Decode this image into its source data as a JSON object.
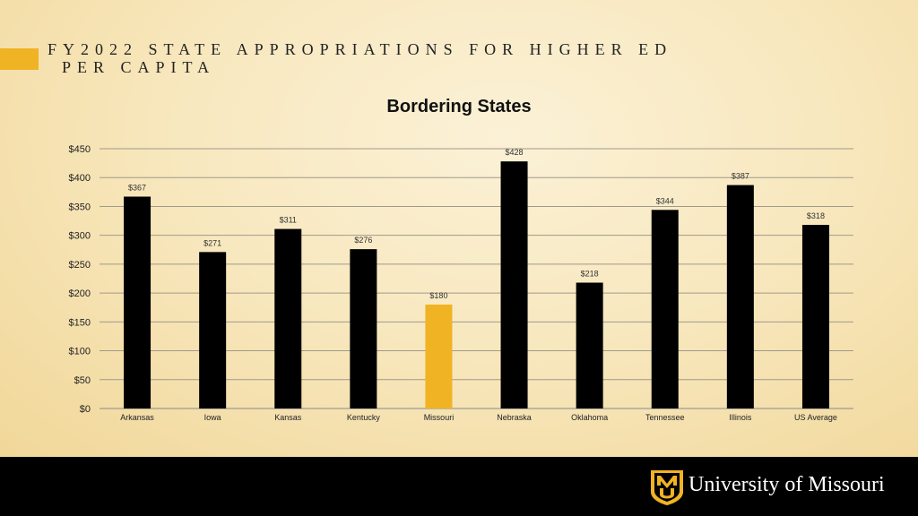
{
  "slide": {
    "title_line1": "FY2022 STATE APPROPRIATIONS FOR HIGHER ED",
    "title_line2": "PER CAPITA"
  },
  "footer": {
    "brand": "University of Missouri",
    "logo_letters": "MU"
  },
  "colors": {
    "bar": "#000000",
    "highlight": "#f0b323",
    "accent": "#f0b323",
    "footer": "#000000"
  },
  "chart_data": {
    "type": "bar",
    "title": "Bordering States",
    "xlabel": "",
    "ylabel": "",
    "categories": [
      "Arkansas",
      "Iowa",
      "Kansas",
      "Kentucky",
      "Missouri",
      "Nebraska",
      "Oklahoma",
      "Tennessee",
      "Illinois",
      "US Average"
    ],
    "values": [
      367,
      271,
      311,
      276,
      180,
      428,
      218,
      344,
      387,
      318
    ],
    "data_labels": [
      "$367",
      "$271",
      "$311",
      "$276",
      "$180",
      "$428",
      "$218",
      "$344",
      "$387",
      "$318"
    ],
    "highlight_category": "Missouri",
    "ylim": [
      0,
      450
    ],
    "yticks": [
      0,
      50,
      100,
      150,
      200,
      250,
      300,
      350,
      400,
      450
    ],
    "ytick_labels": [
      "$0",
      "$50",
      "$100",
      "$150",
      "$200",
      "$250",
      "$300",
      "$350",
      "$400",
      "$450"
    ],
    "grid": true,
    "legend": "none"
  }
}
